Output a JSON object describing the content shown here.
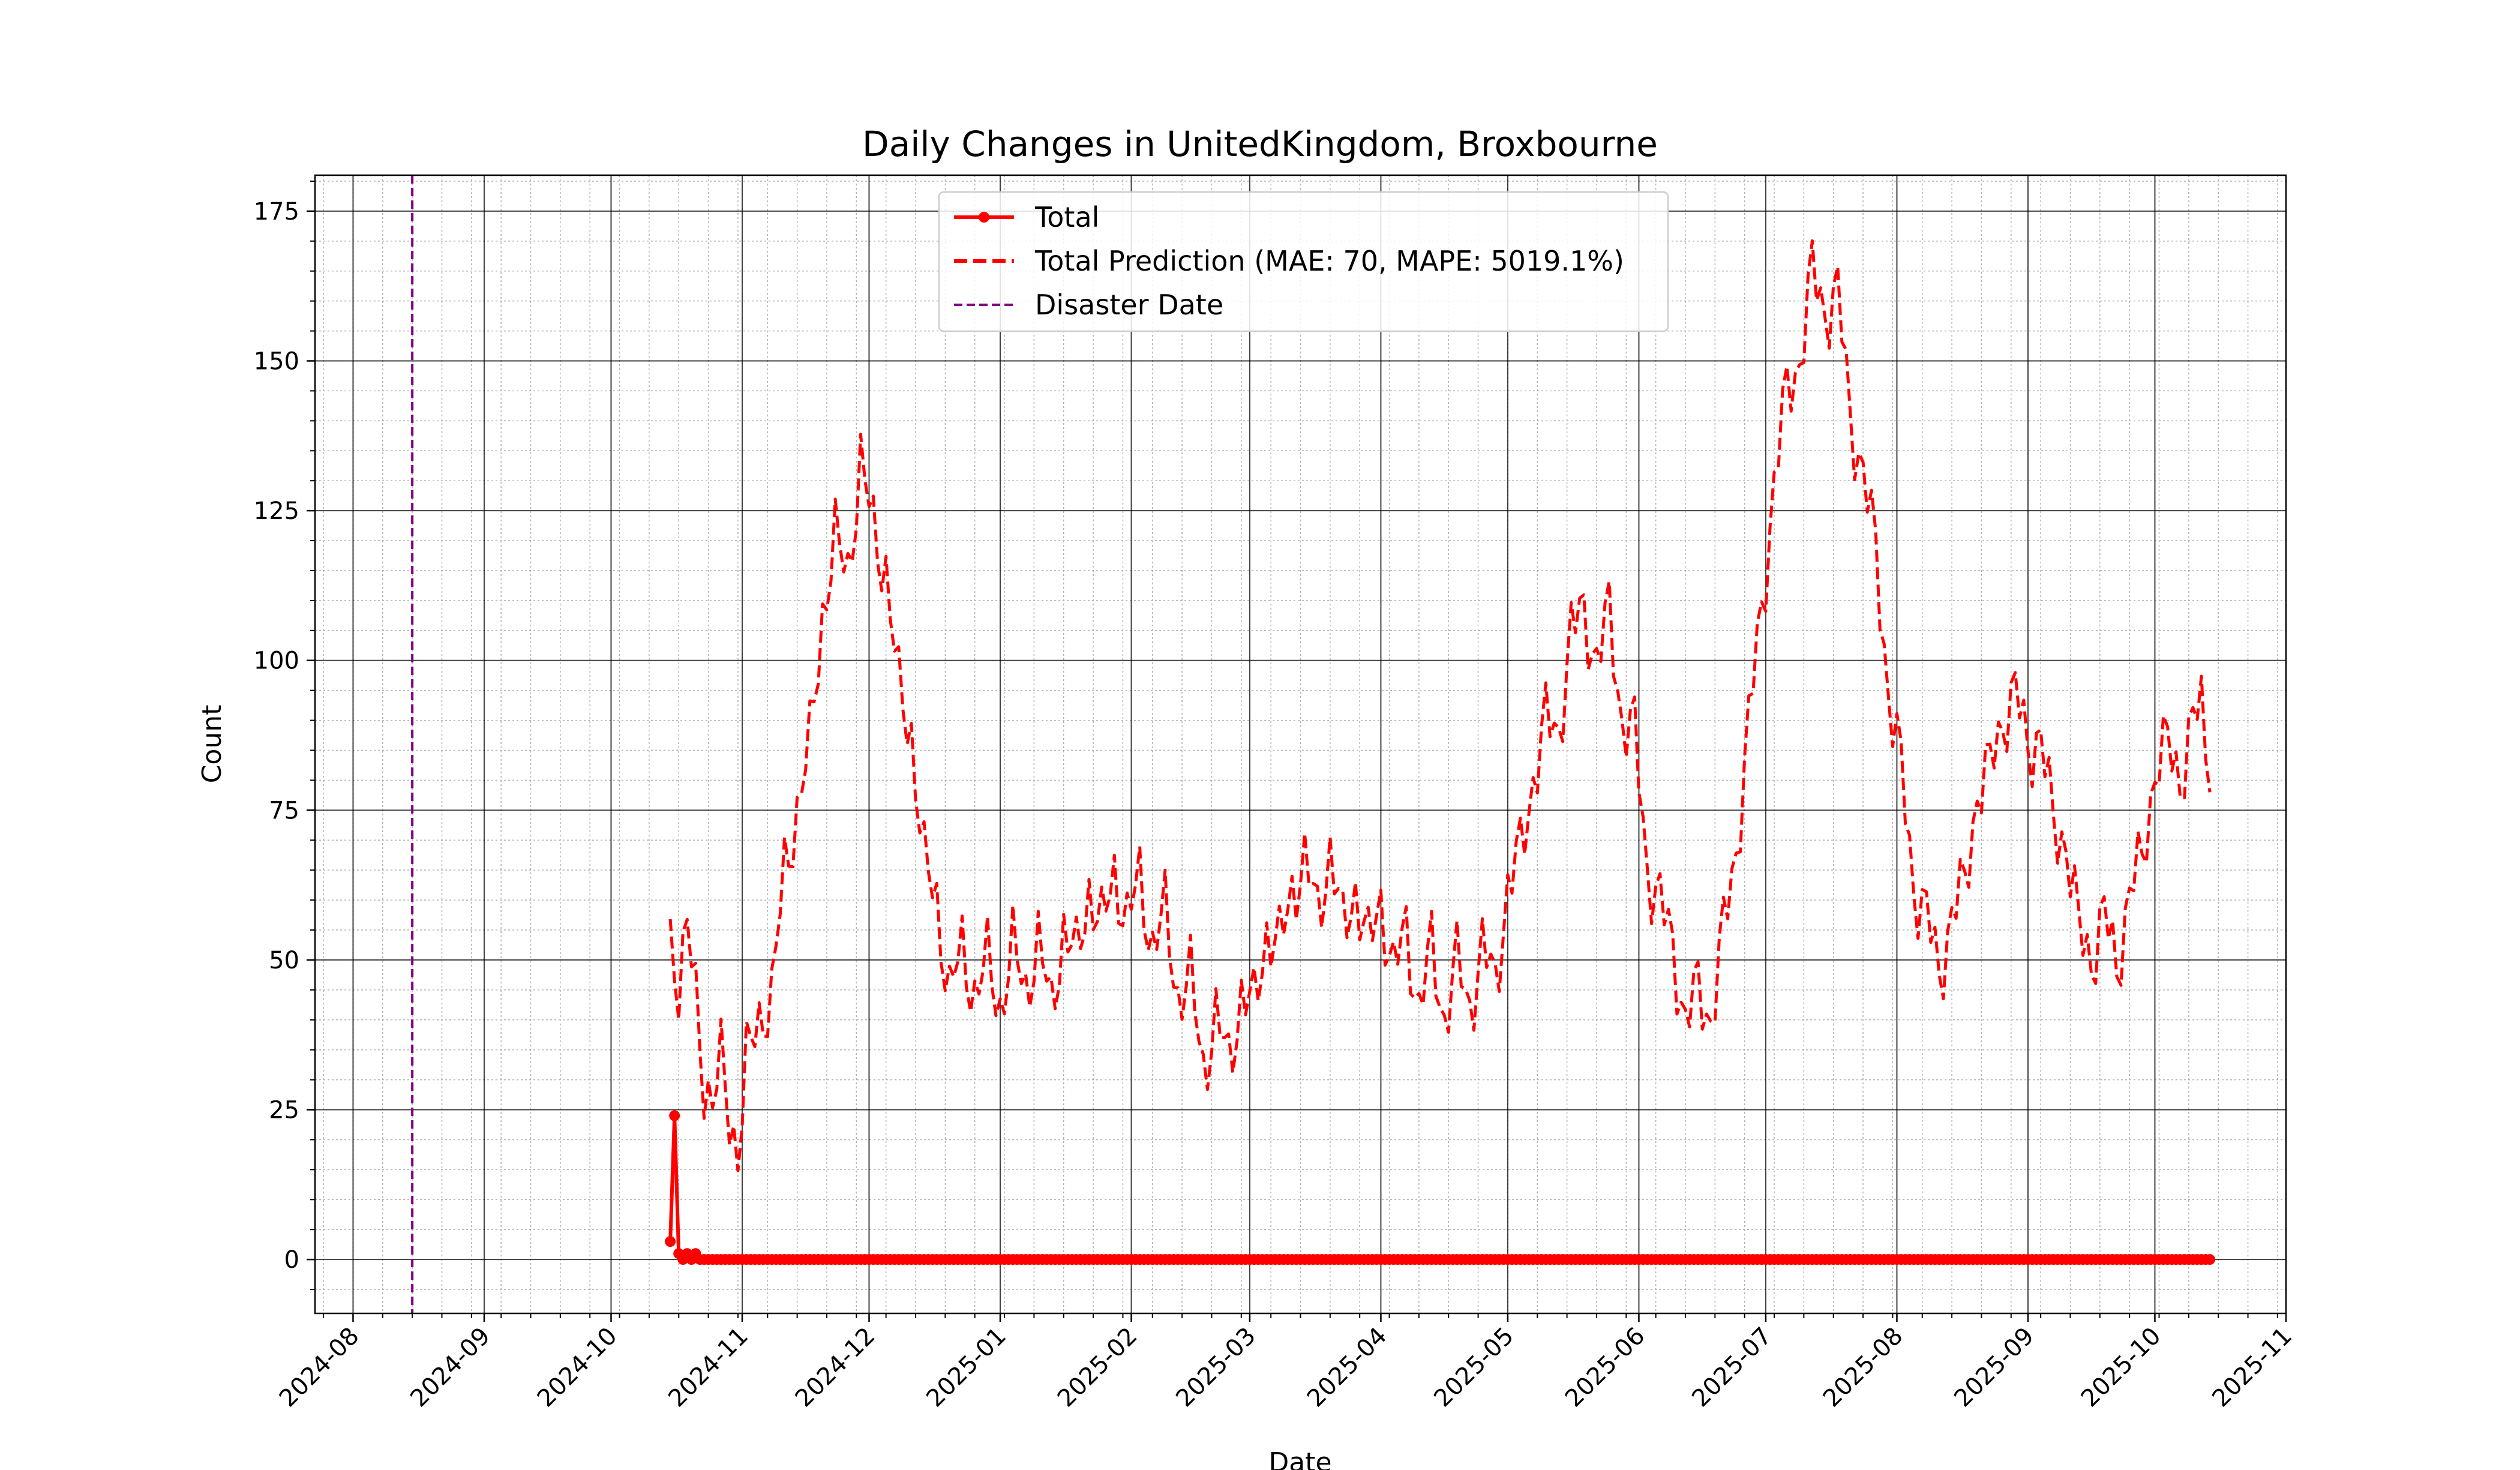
{
  "chart_data": {
    "type": "line",
    "title": "Daily Changes in UnitedKingdom, Broxbourne",
    "xlabel": "Date",
    "ylabel": "Count",
    "xlim": [
      "2024-07-23",
      "2025-11-01"
    ],
    "ylim": [
      -9,
      181
    ],
    "grid": "major and minor",
    "legend_position": "top-center",
    "x_tick_labels": [
      "2024-08",
      "2024-09",
      "2024-10",
      "2024-11",
      "2024-12",
      "2025-01",
      "2025-02",
      "2025-03",
      "2025-04",
      "2025-05",
      "2025-06",
      "2025-07",
      "2025-08",
      "2025-09",
      "2025-10",
      "2025-11"
    ],
    "x_ticks": [
      "2024-08-01",
      "2024-09-01",
      "2024-10-01",
      "2024-11-01",
      "2024-12-01",
      "2025-01-01",
      "2025-02-01",
      "2025-03-01",
      "2025-04-01",
      "2025-05-01",
      "2025-06-01",
      "2025-07-01",
      "2025-08-01",
      "2025-09-01",
      "2025-10-01",
      "2025-11-01"
    ],
    "y_ticks": [
      0,
      25,
      50,
      75,
      100,
      125,
      150,
      175
    ],
    "disaster_date": "2024-08-15",
    "series": [
      {
        "name": "Total",
        "style": "solid-marker",
        "color": "#ff0000",
        "start_date": "2024-10-15",
        "end_date": "2025-10-14",
        "initial_points": [
          [
            "2024-10-15",
            3
          ],
          [
            "2024-10-16",
            24
          ],
          [
            "2024-10-17",
            1
          ],
          [
            "2024-10-18",
            0
          ],
          [
            "2024-10-19",
            1
          ],
          [
            "2024-10-20",
            0
          ],
          [
            "2024-10-21",
            1
          ]
        ],
        "baseline_value": 0
      },
      {
        "name": "Total Prediction (MAE: 70, MAPE: 5019.1%)",
        "style": "dashed",
        "color": "#ff0000",
        "points": [
          [
            "2024-10-15",
            54
          ],
          [
            "2024-10-17",
            46
          ],
          [
            "2024-10-19",
            55
          ],
          [
            "2024-10-21",
            44
          ],
          [
            "2024-10-23",
            30
          ],
          [
            "2024-10-25",
            26
          ],
          [
            "2024-10-27",
            33
          ],
          [
            "2024-10-29",
            24
          ],
          [
            "2024-10-31",
            18
          ],
          [
            "2024-11-02",
            33
          ],
          [
            "2024-11-05",
            40
          ],
          [
            "2024-11-08",
            44
          ],
          [
            "2024-11-11",
            65
          ],
          [
            "2024-11-14",
            75
          ],
          [
            "2024-11-17",
            86
          ],
          [
            "2024-11-20",
            108
          ],
          [
            "2024-11-23",
            120
          ],
          [
            "2024-11-26",
            115
          ],
          [
            "2024-11-29",
            133
          ],
          [
            "2024-12-02",
            122
          ],
          [
            "2024-12-05",
            115
          ],
          [
            "2024-12-08",
            95
          ],
          [
            "2024-12-11",
            88
          ],
          [
            "2024-12-14",
            66
          ],
          [
            "2024-12-17",
            60
          ],
          [
            "2024-12-20",
            44
          ],
          [
            "2024-12-23",
            52
          ],
          [
            "2024-12-26",
            44
          ],
          [
            "2024-12-29",
            50
          ],
          [
            "2025-01-01",
            42
          ],
          [
            "2025-01-04",
            52
          ],
          [
            "2025-01-07",
            45
          ],
          [
            "2025-01-10",
            53
          ],
          [
            "2025-01-13",
            42
          ],
          [
            "2025-01-16",
            55
          ],
          [
            "2025-01-19",
            50
          ],
          [
            "2025-01-22",
            62
          ],
          [
            "2025-01-25",
            55
          ],
          [
            "2025-01-28",
            65
          ],
          [
            "2025-01-31",
            56
          ],
          [
            "2025-02-03",
            64
          ],
          [
            "2025-02-06",
            52
          ],
          [
            "2025-02-09",
            58
          ],
          [
            "2025-02-12",
            44
          ],
          [
            "2025-02-15",
            47
          ],
          [
            "2025-02-18",
            32
          ],
          [
            "2025-02-21",
            40
          ],
          [
            "2025-02-24",
            33
          ],
          [
            "2025-02-27",
            44
          ],
          [
            "2025-03-02",
            42
          ],
          [
            "2025-03-05",
            55
          ],
          [
            "2025-03-08",
            52
          ],
          [
            "2025-03-11",
            62
          ],
          [
            "2025-03-14",
            66
          ],
          [
            "2025-03-17",
            58
          ],
          [
            "2025-03-20",
            68
          ],
          [
            "2025-03-23",
            55
          ],
          [
            "2025-03-26",
            62
          ],
          [
            "2025-03-29",
            52
          ],
          [
            "2025-04-01",
            60
          ],
          [
            "2025-04-04",
            48
          ],
          [
            "2025-04-07",
            55
          ],
          [
            "2025-04-10",
            42
          ],
          [
            "2025-04-13",
            52
          ],
          [
            "2025-04-16",
            40
          ],
          [
            "2025-04-19",
            50
          ],
          [
            "2025-04-22",
            42
          ],
          [
            "2025-04-25",
            52
          ],
          [
            "2025-04-28",
            46
          ],
          [
            "2025-05-01",
            62
          ],
          [
            "2025-05-04",
            68
          ],
          [
            "2025-05-07",
            80
          ],
          [
            "2025-05-10",
            90
          ],
          [
            "2025-05-13",
            88
          ],
          [
            "2025-05-16",
            105
          ],
          [
            "2025-05-19",
            108
          ],
          [
            "2025-05-22",
            100
          ],
          [
            "2025-05-25",
            108
          ],
          [
            "2025-05-28",
            90
          ],
          [
            "2025-05-31",
            88
          ],
          [
            "2025-06-03",
            65
          ],
          [
            "2025-06-06",
            60
          ],
          [
            "2025-06-09",
            52
          ],
          [
            "2025-06-12",
            40
          ],
          [
            "2025-06-15",
            45
          ],
          [
            "2025-06-18",
            40
          ],
          [
            "2025-06-21",
            55
          ],
          [
            "2025-06-24",
            68
          ],
          [
            "2025-06-27",
            90
          ],
          [
            "2025-06-30",
            108
          ],
          [
            "2025-07-03",
            130
          ],
          [
            "2025-07-06",
            145
          ],
          [
            "2025-07-09",
            150
          ],
          [
            "2025-07-12",
            165
          ],
          [
            "2025-07-15",
            158
          ],
          [
            "2025-07-18",
            162
          ],
          [
            "2025-07-21",
            140
          ],
          [
            "2025-07-24",
            132
          ],
          [
            "2025-07-27",
            118
          ],
          [
            "2025-07-30",
            95
          ],
          [
            "2025-08-02",
            82
          ],
          [
            "2025-08-05",
            62
          ],
          [
            "2025-08-08",
            58
          ],
          [
            "2025-08-11",
            47
          ],
          [
            "2025-08-14",
            58
          ],
          [
            "2025-08-17",
            62
          ],
          [
            "2025-08-20",
            78
          ],
          [
            "2025-08-23",
            82
          ],
          [
            "2025-08-26",
            90
          ],
          [
            "2025-08-29",
            95
          ],
          [
            "2025-09-01",
            85
          ],
          [
            "2025-09-04",
            88
          ],
          [
            "2025-09-07",
            72
          ],
          [
            "2025-09-10",
            70
          ],
          [
            "2025-09-13",
            55
          ],
          [
            "2025-09-16",
            50
          ],
          [
            "2025-09-19",
            58
          ],
          [
            "2025-09-22",
            48
          ],
          [
            "2025-09-25",
            62
          ],
          [
            "2025-09-28",
            66
          ],
          [
            "2025-10-01",
            82
          ],
          [
            "2025-10-04",
            86
          ],
          [
            "2025-10-07",
            80
          ],
          [
            "2025-10-10",
            90
          ],
          [
            "2025-10-12",
            92
          ],
          [
            "2025-10-14",
            78
          ]
        ]
      }
    ],
    "legend": {
      "entries": [
        "Total",
        "Total Prediction (MAE: 70, MAPE: 5019.1%)",
        "Disaster Date"
      ],
      "disaster_color": "#800080"
    }
  }
}
